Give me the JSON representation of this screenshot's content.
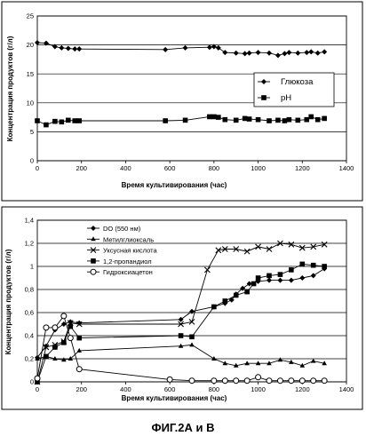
{
  "chart_data": [
    {
      "type": "line",
      "panel": "A",
      "xlabel": "Время культивирования (час)",
      "ylabel": "Концентрация продуктов (г/л)",
      "xlim": [
        0,
        1400
      ],
      "ylim": [
        0,
        25
      ],
      "xticks": [
        0,
        200,
        400,
        600,
        800,
        1000,
        1200,
        1400
      ],
      "yticks": [
        0,
        5,
        10,
        15,
        20,
        25
      ],
      "grid": "horizontal",
      "legend": "right",
      "series": [
        {
          "name": "Глюкоза",
          "marker": "diamond",
          "x": [
            0,
            40,
            80,
            110,
            140,
            170,
            190,
            580,
            670,
            780,
            800,
            820,
            850,
            900,
            940,
            960,
            1000,
            1050,
            1090,
            1120,
            1140,
            1180,
            1220,
            1240,
            1270,
            1300
          ],
          "y": [
            20.4,
            20.3,
            19.7,
            19.5,
            19.4,
            19.3,
            19.3,
            19.2,
            19.5,
            19.6,
            19.7,
            19.5,
            18.7,
            18.6,
            18.5,
            18.6,
            18.7,
            18.6,
            18.2,
            18.5,
            18.7,
            18.6,
            18.7,
            18.8,
            18.6,
            18.8
          ]
        },
        {
          "name": "pH",
          "marker": "square",
          "x": [
            0,
            40,
            80,
            110,
            140,
            170,
            190,
            580,
            670,
            780,
            800,
            820,
            850,
            900,
            940,
            960,
            1000,
            1050,
            1090,
            1120,
            1140,
            1180,
            1220,
            1240,
            1270,
            1300
          ],
          "y": [
            6.9,
            6.2,
            6.8,
            6.7,
            7.0,
            6.9,
            6.9,
            6.9,
            7.0,
            7.6,
            7.6,
            7.5,
            7.1,
            7.0,
            7.3,
            7.2,
            7.1,
            6.9,
            7.0,
            6.9,
            7.1,
            7.0,
            7.1,
            7.6,
            7.1,
            7.3
          ]
        }
      ]
    },
    {
      "type": "line",
      "panel": "B",
      "xlabel": "Время культивирования (час)",
      "ylabel": "Концентрация продуктов (г/л)",
      "xlim": [
        0,
        1400
      ],
      "ylim": [
        0,
        1.4
      ],
      "xticks": [
        0,
        200,
        400,
        600,
        800,
        1000,
        1200,
        1400
      ],
      "yticks": [
        0,
        0.2,
        0.4,
        0.6,
        0.8,
        1,
        1.2,
        1.4
      ],
      "ytick_labels": [
        "0",
        "0,2",
        "0,4",
        "0,6",
        "0,8",
        "1",
        "1,2",
        "1,4"
      ],
      "grid": "horizontal",
      "legend": "top-left",
      "series": [
        {
          "name": "DO (550 нм)",
          "marker": "diamond",
          "x": [
            0,
            40,
            80,
            120,
            150,
            190,
            650,
            700,
            800,
            850,
            880,
            900,
            930,
            960,
            1000,
            1050,
            1100,
            1150,
            1200,
            1250,
            1300
          ],
          "y": [
            0.21,
            0.31,
            0.45,
            0.5,
            0.52,
            0.51,
            0.54,
            0.61,
            0.65,
            0.68,
            0.71,
            0.76,
            0.81,
            0.85,
            0.87,
            0.88,
            0.88,
            0.88,
            0.9,
            0.92,
            0.98
          ]
        },
        {
          "name": "Метилглиоксаль",
          "marker": "triangle",
          "x": [
            0,
            40,
            80,
            120,
            150,
            190,
            650,
            700,
            800,
            850,
            900,
            950,
            1000,
            1050,
            1100,
            1150,
            1200,
            1250,
            1300
          ],
          "y": [
            0.2,
            0.22,
            0.2,
            0.19,
            0.2,
            0.27,
            0.31,
            0.32,
            0.2,
            0.16,
            0.14,
            0.16,
            0.16,
            0.16,
            0.19,
            0.17,
            0.14,
            0.18,
            0.16
          ]
        },
        {
          "name": "Уксусная кислота",
          "marker": "x",
          "x": [
            0,
            40,
            80,
            120,
            150,
            190,
            650,
            700,
            770,
            820,
            850,
            900,
            950,
            1000,
            1050,
            1100,
            1150,
            1200,
            1250,
            1300
          ],
          "y": [
            0,
            0.3,
            0.32,
            0.35,
            0.51,
            0.5,
            0.5,
            0.52,
            0.97,
            1.14,
            1.15,
            1.15,
            1.13,
            1.17,
            1.15,
            1.2,
            1.19,
            1.16,
            1.17,
            1.19
          ]
        },
        {
          "name": "1,2-пропандиол",
          "marker": "square",
          "x": [
            0,
            40,
            80,
            120,
            150,
            190,
            650,
            700,
            800,
            850,
            900,
            950,
            980,
            1000,
            1050,
            1100,
            1150,
            1200,
            1250,
            1300
          ],
          "y": [
            0,
            0.22,
            0.3,
            0.34,
            0.48,
            0.38,
            0.4,
            0.39,
            0.65,
            0.7,
            0.75,
            0.78,
            0.85,
            0.9,
            0.92,
            0.93,
            0.97,
            1.02,
            1.01,
            1.0
          ]
        },
        {
          "name": "Гидроксиацетон",
          "marker": "circle",
          "x": [
            0,
            40,
            80,
            120,
            150,
            190,
            600,
            700,
            800,
            850,
            900,
            950,
            1000,
            1050,
            1100,
            1150,
            1200,
            1250,
            1300
          ],
          "y": [
            0.03,
            0.47,
            0.47,
            0.57,
            0.38,
            0.11,
            0.02,
            0.01,
            0.01,
            0.01,
            0.01,
            0.01,
            0.04,
            0.01,
            0.01,
            0.01,
            0.01,
            0.01,
            0.01
          ]
        }
      ]
    }
  ],
  "caption": "ФИГ.2А и В"
}
